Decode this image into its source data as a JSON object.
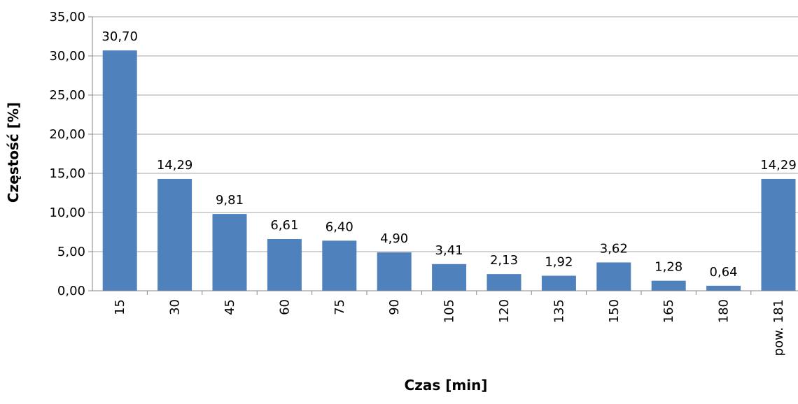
{
  "chart_data": {
    "type": "bar",
    "categories": [
      "15",
      "30",
      "45",
      "60",
      "75",
      "90",
      "105",
      "120",
      "135",
      "150",
      "165",
      "180",
      "pow. 181"
    ],
    "values": [
      30.7,
      14.29,
      9.81,
      6.61,
      6.4,
      4.9,
      3.41,
      2.13,
      1.92,
      3.62,
      1.28,
      0.64,
      14.29
    ],
    "data_labels": [
      "30,70",
      "14,29",
      "9,81",
      "6,61",
      "6,40",
      "4,90",
      "3,41",
      "2,13",
      "1,92",
      "3,62",
      "1,28",
      "0,64",
      "14,29"
    ],
    "yticks": [
      0,
      5,
      10,
      15,
      20,
      25,
      30,
      35
    ],
    "ytick_labels": [
      "0,00",
      "5,00",
      "10,00",
      "15,00",
      "20,00",
      "25,00",
      "30,00",
      "35,00"
    ],
    "ylim": [
      0,
      35
    ],
    "xlabel": "Czas [min]",
    "ylabel": "Częstość [%]",
    "grid": true,
    "bar_color": "#4F81BD",
    "grid_color": "#A6A6A6"
  }
}
